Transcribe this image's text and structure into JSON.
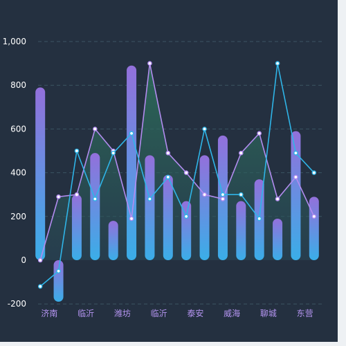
{
  "chart_data": {
    "type": "bar",
    "categories": [
      "济南",
      "",
      "临沂",
      "",
      "潍坊",
      "",
      "临沂",
      "",
      "泰安",
      "",
      "威海",
      "",
      "聊城",
      "",
      "东营",
      ""
    ],
    "series": [
      {
        "type": "bar",
        "values": [
          790,
          -190,
          300,
          490,
          180,
          890,
          480,
          390,
          270,
          480,
          570,
          270,
          370,
          190,
          590,
          290
        ]
      },
      {
        "type": "area",
        "values": [
          0,
          290,
          300,
          600,
          500,
          190,
          900,
          490,
          400,
          300,
          280,
          490,
          580,
          280,
          380,
          200
        ]
      },
      {
        "type": "line",
        "values": [
          -120,
          -50,
          500,
          280,
          490,
          580,
          280,
          380,
          200,
          600,
          300,
          300,
          190,
          900,
          490,
          400
        ]
      }
    ],
    "yticks": [
      -200,
      0,
      200,
      400,
      600,
      800,
      1000
    ],
    "ytick_labels": [
      "-200",
      "0",
      "200",
      "400",
      "600",
      "800",
      "1,000"
    ],
    "ylim": [
      -200,
      1100
    ],
    "grid": true,
    "title": "",
    "xlabel": "",
    "ylabel": "",
    "colors": {
      "bar_top": "#9370db",
      "bar_bottom": "#3aaee8",
      "line_purple": "#b38cf0",
      "line_cyan": "#2fb5e8",
      "area_fill": "#2a6a5a",
      "grid": "#3b5563",
      "ytick": "#ffffff",
      "xtick": "#b494f0"
    }
  }
}
